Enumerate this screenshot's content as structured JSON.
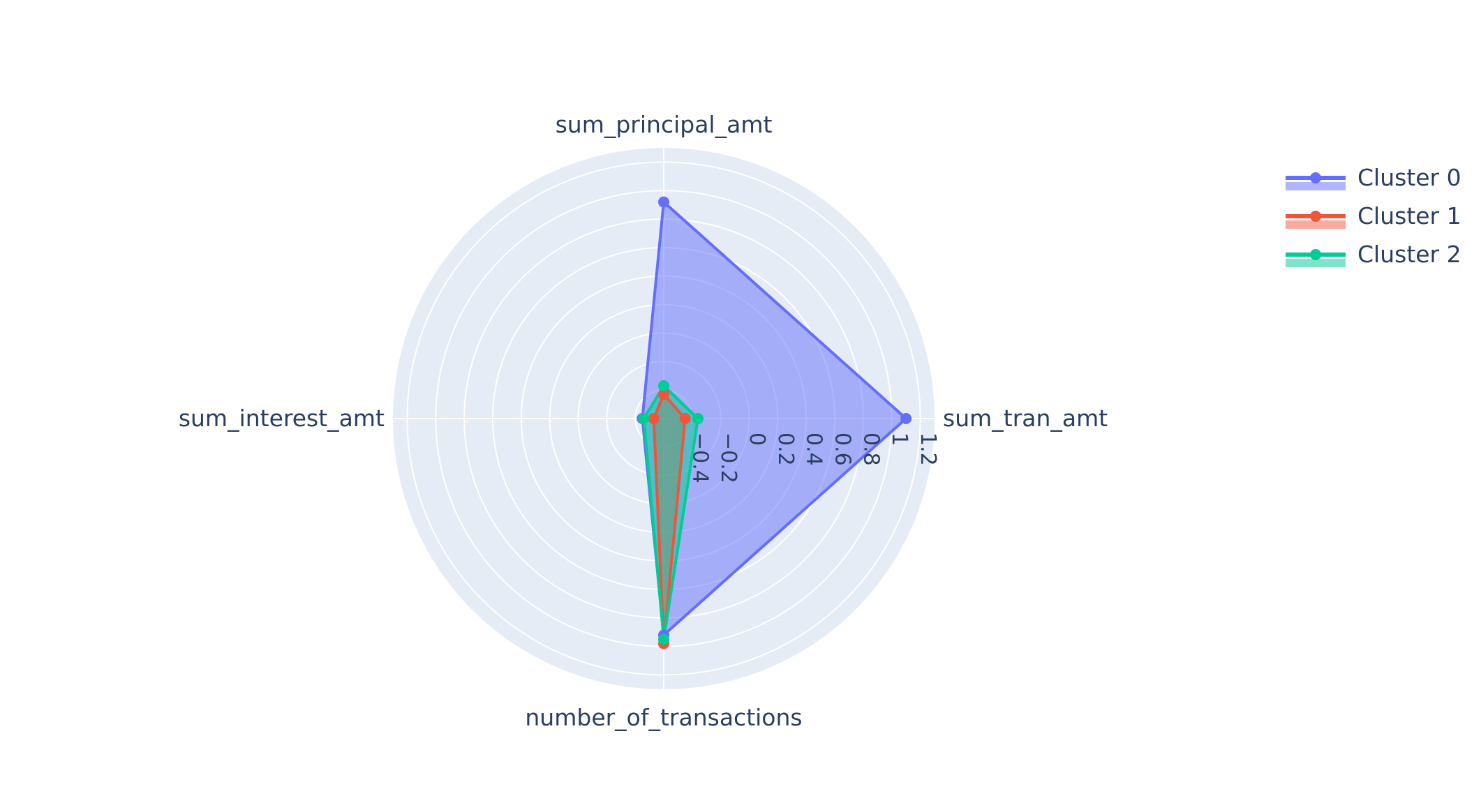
{
  "chart_data": {
    "type": "radar",
    "axes": [
      "sum_principal_amt",
      "sum_tran_amt",
      "number_of_transactions",
      "sum_interest_amt"
    ],
    "radial_range": [
      -0.6,
      1.3
    ],
    "radial_ticks": [
      "−0.4",
      "−0.2",
      "0",
      "0.2",
      "0.4",
      "0.6",
      "0.8",
      "1",
      "1.2"
    ],
    "radial_tick_values": [
      -0.4,
      -0.2,
      0,
      0.2,
      0.4,
      0.6,
      0.8,
      1.0,
      1.2
    ],
    "grid_values": [
      -0.4,
      -0.2,
      0,
      0.2,
      0.4,
      0.6,
      0.8,
      1.0,
      1.2
    ],
    "grid": true,
    "legend_position": "top-right",
    "series": [
      {
        "name": "Cluster 0",
        "color": "#636EFA",
        "values": [
          0.92,
          1.1,
          0.92,
          -0.45
        ]
      },
      {
        "name": "Cluster 1",
        "color": "#EF553B",
        "values": [
          -0.43,
          -0.45,
          0.98,
          -0.53
        ]
      },
      {
        "name": "Cluster 2",
        "color": "#00CC96",
        "values": [
          -0.37,
          -0.36,
          0.95,
          -0.46
        ]
      }
    ]
  },
  "colors": {
    "polar_background": "#E5ECF6",
    "grid": "#ffffff",
    "text": "#2a3f5f"
  }
}
